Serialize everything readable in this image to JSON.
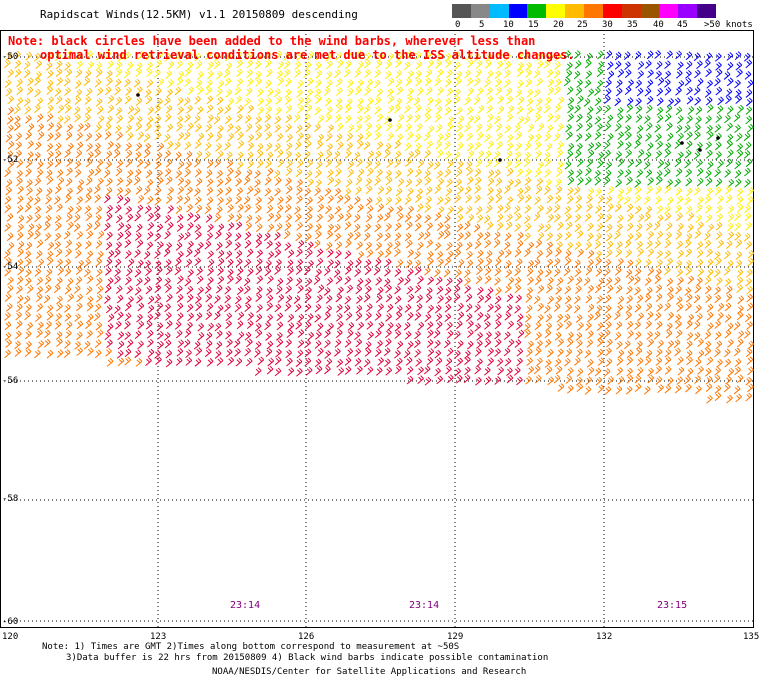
{
  "header": {
    "title": "Rapidscat Winds(12.5KM) v1.1 20150809 descending"
  },
  "note": {
    "line1": "Note: black circles have been added to the wind barbs, wherever less than",
    "line2": "optimal wind retrieval conditions are met due to the ISS altitude changes."
  },
  "colorbar": {
    "colors": [
      "#555555",
      "#888888",
      "#00bbff",
      "#0000ff",
      "#00bb00",
      "#ffff00",
      "#ffbb00",
      "#ff7700",
      "#ff0000",
      "#cc3300",
      "#995500",
      "#ff00ff",
      "#9900ff",
      "#440088"
    ],
    "labels": [
      "0",
      "5",
      "10",
      "15",
      "20",
      "25",
      "30",
      "35",
      "40",
      "45",
      ">50 knots"
    ]
  },
  "axes": {
    "lat_labels": [
      "-50",
      "-52",
      "-54",
      "-56",
      "-58",
      "-60"
    ],
    "lon_labels": [
      "120",
      "123",
      "126",
      "129",
      "132",
      "135"
    ]
  },
  "times": [
    "23:14",
    "23:14",
    "23:15"
  ],
  "footnote": {
    "line1": "Note: 1) Times are GMT 2)Times along bottom correspond to measurement at ~50S",
    "line2": "3)Data buffer is 22 hrs from 20150809 4) Black wind barbs indicate possible contamination"
  },
  "credit": "NOAA/NESDIS/Center for Satellite Applications and Research"
}
